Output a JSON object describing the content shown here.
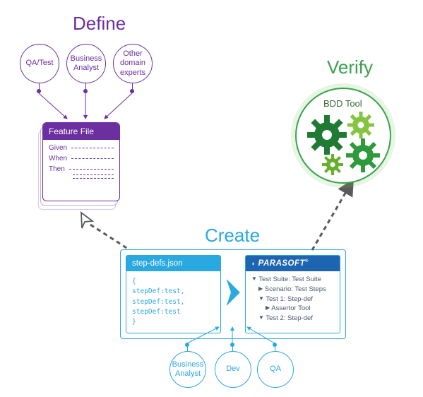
{
  "sections": {
    "define": {
      "title": "Define",
      "color": "#6b2fa0"
    },
    "create": {
      "title": "Create",
      "color": "#2aa8e0"
    },
    "verify": {
      "title": "Verify",
      "color": "#3aa24b"
    }
  },
  "define_roles": [
    "QA/Test",
    "Business\nAnalyst",
    "Other\ndomain\nexperts"
  ],
  "feature_file": {
    "header": "Feature File",
    "rows": [
      "Given",
      "When",
      "Then"
    ]
  },
  "create_box": {
    "left": {
      "header": "step-defs.json",
      "code_lines": [
        "{",
        "  stepDef:test,",
        "  stepDef:test,",
        "  stepDef:test",
        "}"
      ]
    },
    "right": {
      "header": "PARASOFT",
      "tree": [
        {
          "indent": 0,
          "icon": "▼",
          "text": "Test Suite: Test Suite"
        },
        {
          "indent": 1,
          "icon": "▶",
          "text": "Scenario: Test Steps"
        },
        {
          "indent": 1,
          "icon": "▼",
          "text": "Test 1: Step-def"
        },
        {
          "indent": 2,
          "icon": "▶",
          "text": "Assertor Tool"
        },
        {
          "indent": 1,
          "icon": "▼",
          "text": "Test 2: Step-def"
        }
      ]
    }
  },
  "create_roles": [
    "Business\nAnalyst",
    "Dev",
    "QA"
  ],
  "bdd": {
    "label": "BDD Tool",
    "gear_colors": [
      "#1f7a34",
      "#86c440",
      "#2e9a3c",
      "#66b02f"
    ]
  },
  "colors": {
    "purple": "#6b2fa0",
    "blue": "#2aa8e0",
    "darkblue": "#1d65b0",
    "green": "#3aa24b",
    "greytext": "#475a70",
    "dash": "#5a5a5a"
  }
}
